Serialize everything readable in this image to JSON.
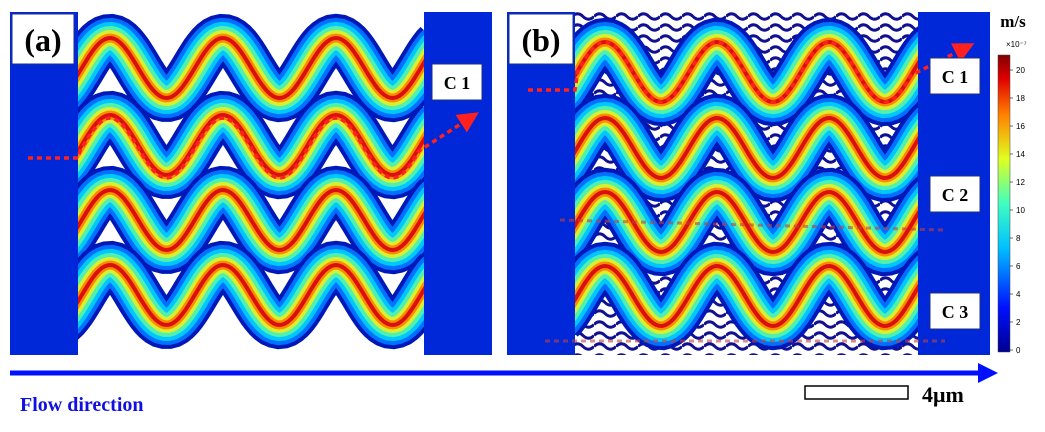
{
  "panels": [
    {
      "label": "(a)",
      "channels": [
        "C 1"
      ]
    },
    {
      "label": "(b)",
      "channels": [
        "C 1",
        "C 2",
        "C 3"
      ]
    }
  ],
  "colorbar": {
    "unit": "m/s",
    "exponent": "×10⁻⁷",
    "ticks": [
      0,
      2,
      4,
      6,
      8,
      10,
      12,
      14,
      16,
      18,
      20
    ]
  },
  "flow_direction": "Flow direction",
  "scale_bar": "4μm"
}
